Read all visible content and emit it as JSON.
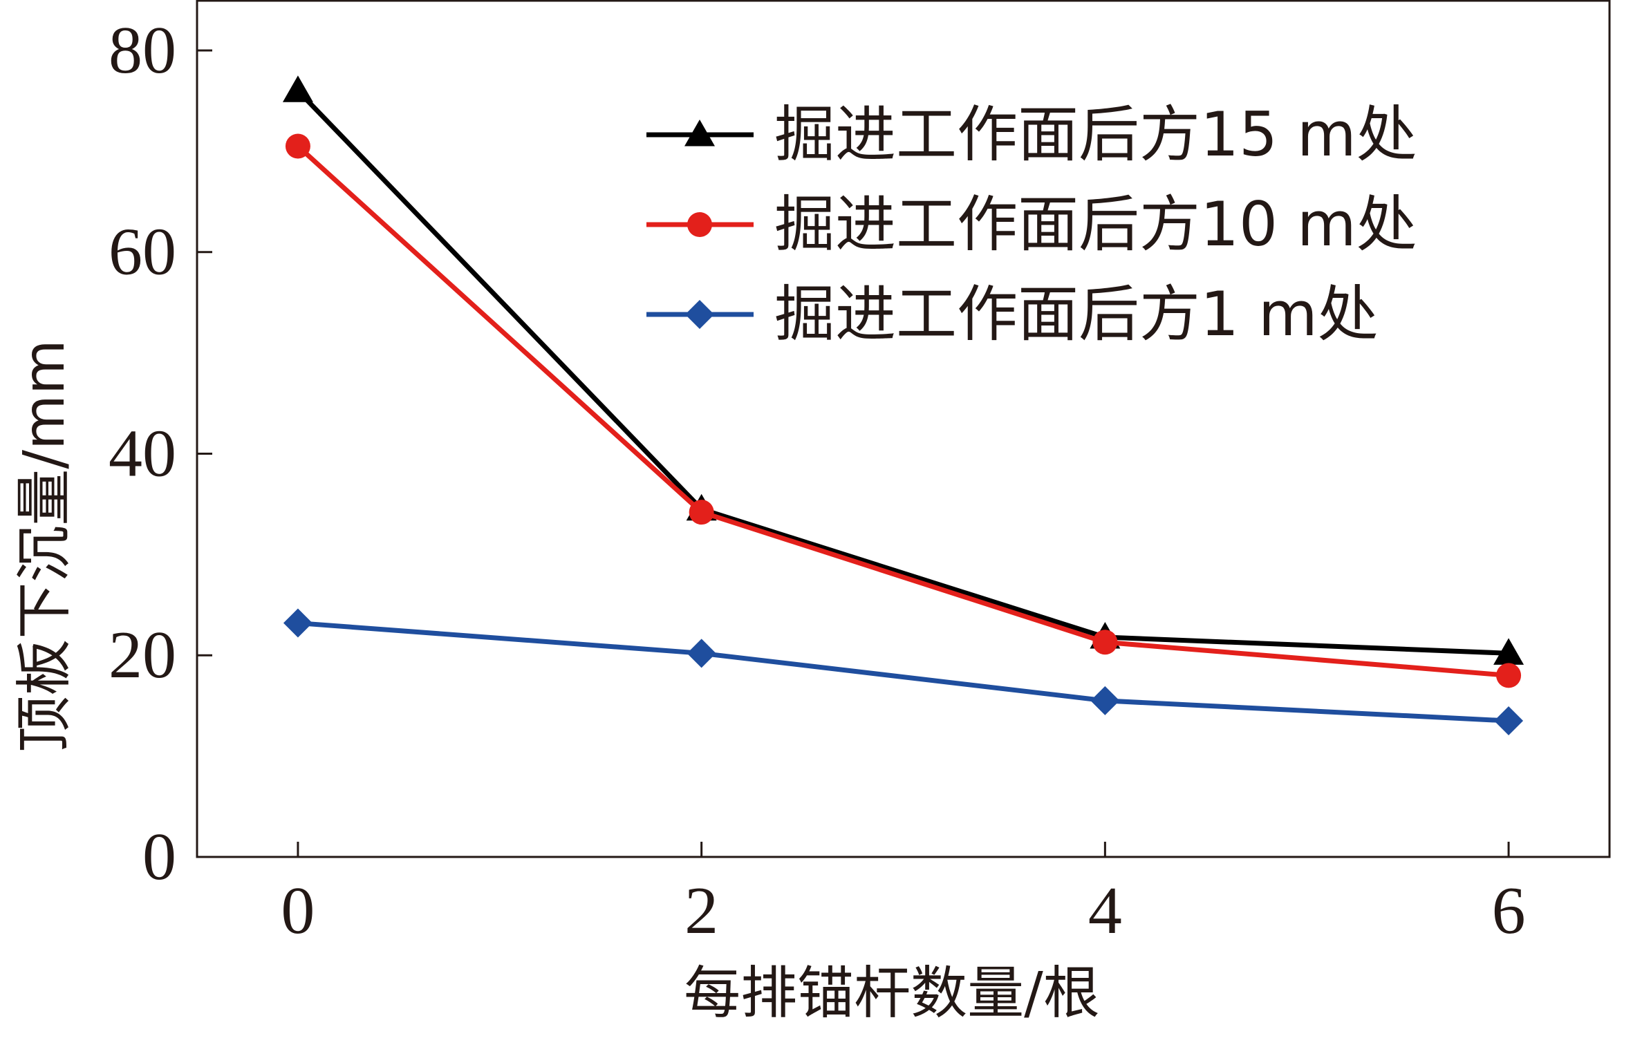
{
  "chart_data": {
    "type": "line",
    "x": [
      0,
      2,
      4,
      6
    ],
    "xlabel": "每排锚杆数量/根",
    "ylabel": "顶板下沉量/mm",
    "xticks": [
      "0",
      "2",
      "4",
      "6"
    ],
    "yticks": [
      "0",
      "20",
      "40",
      "60",
      "80"
    ],
    "xlim": [
      -0.5,
      6.5
    ],
    "ylim": [
      0,
      85
    ],
    "grid": false,
    "legend_position": "top-right",
    "series": [
      {
        "name": "掘进工作面后方15 m处",
        "values": [
          76,
          34.5,
          21.8,
          20.2
        ],
        "color": "#000000",
        "marker": "triangle"
      },
      {
        "name": "掘进工作面后方10 m处",
        "values": [
          70.5,
          34.2,
          21.3,
          18.0
        ],
        "color": "#e3201b",
        "marker": "circle"
      },
      {
        "name": "掘进工作面后方1 m处",
        "values": [
          23.2,
          20.2,
          15.5,
          13.5
        ],
        "color": "#1f4e9e",
        "marker": "diamond"
      }
    ]
  }
}
